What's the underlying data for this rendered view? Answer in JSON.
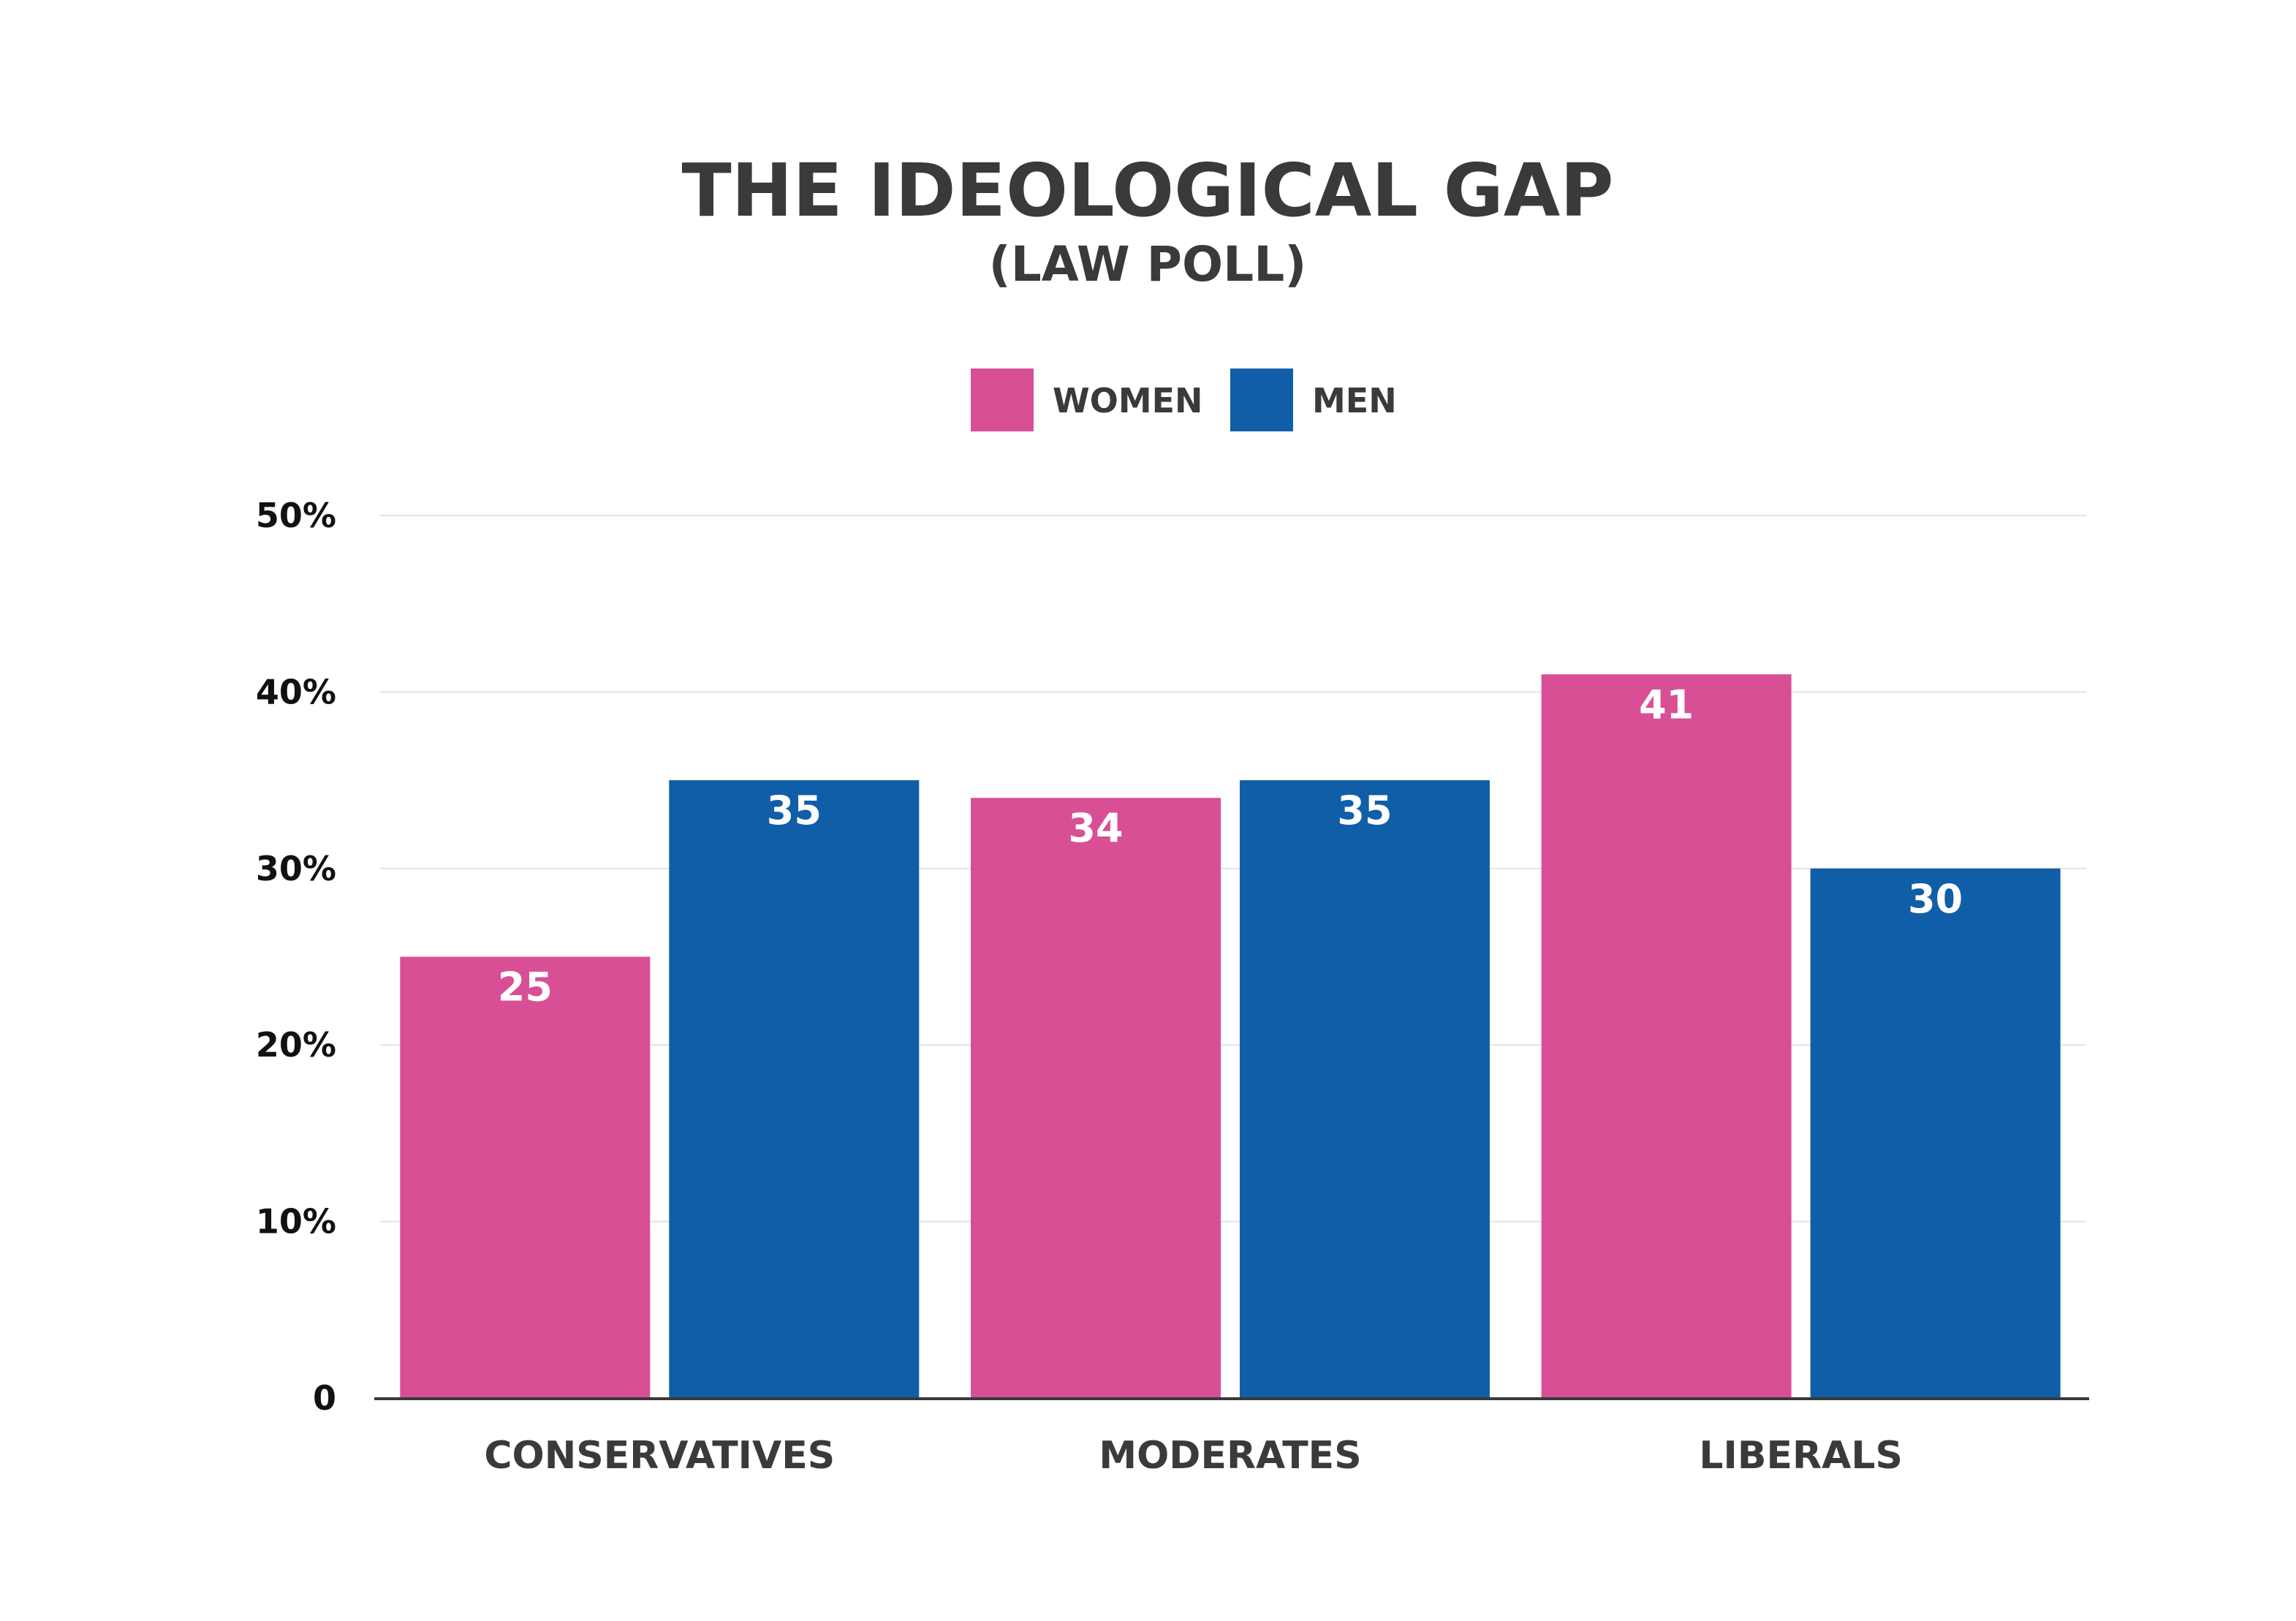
{
  "chart_data": {
    "type": "bar",
    "title": "THE IDEOLOGICAL GAP",
    "subtitle": "(LAW POLL)",
    "categories": [
      "CONSERVATIVES",
      "MODERATES",
      "LIBERALS"
    ],
    "series": [
      {
        "name": "WOMEN",
        "color": "#d84f96",
        "values": [
          25,
          34,
          41
        ]
      },
      {
        "name": "MEN",
        "color": "#105ea8",
        "values": [
          35,
          35,
          30
        ]
      }
    ],
    "value_labels": {
      "WOMEN": [
        "25",
        "34",
        "41"
      ],
      "MEN": [
        "35",
        "35",
        "30"
      ]
    },
    "yticks": [
      {
        "value": 0,
        "label": "0"
      },
      {
        "value": 10,
        "label": "10%"
      },
      {
        "value": 20,
        "label": "20%"
      },
      {
        "value": 30,
        "label": "30%"
      },
      {
        "value": 40,
        "label": "40%"
      },
      {
        "value": 50,
        "label": "50%"
      }
    ],
    "ylim": [
      0,
      50
    ],
    "xlabel": "",
    "ylabel": "",
    "grid": true,
    "legend_position": "top-center"
  }
}
